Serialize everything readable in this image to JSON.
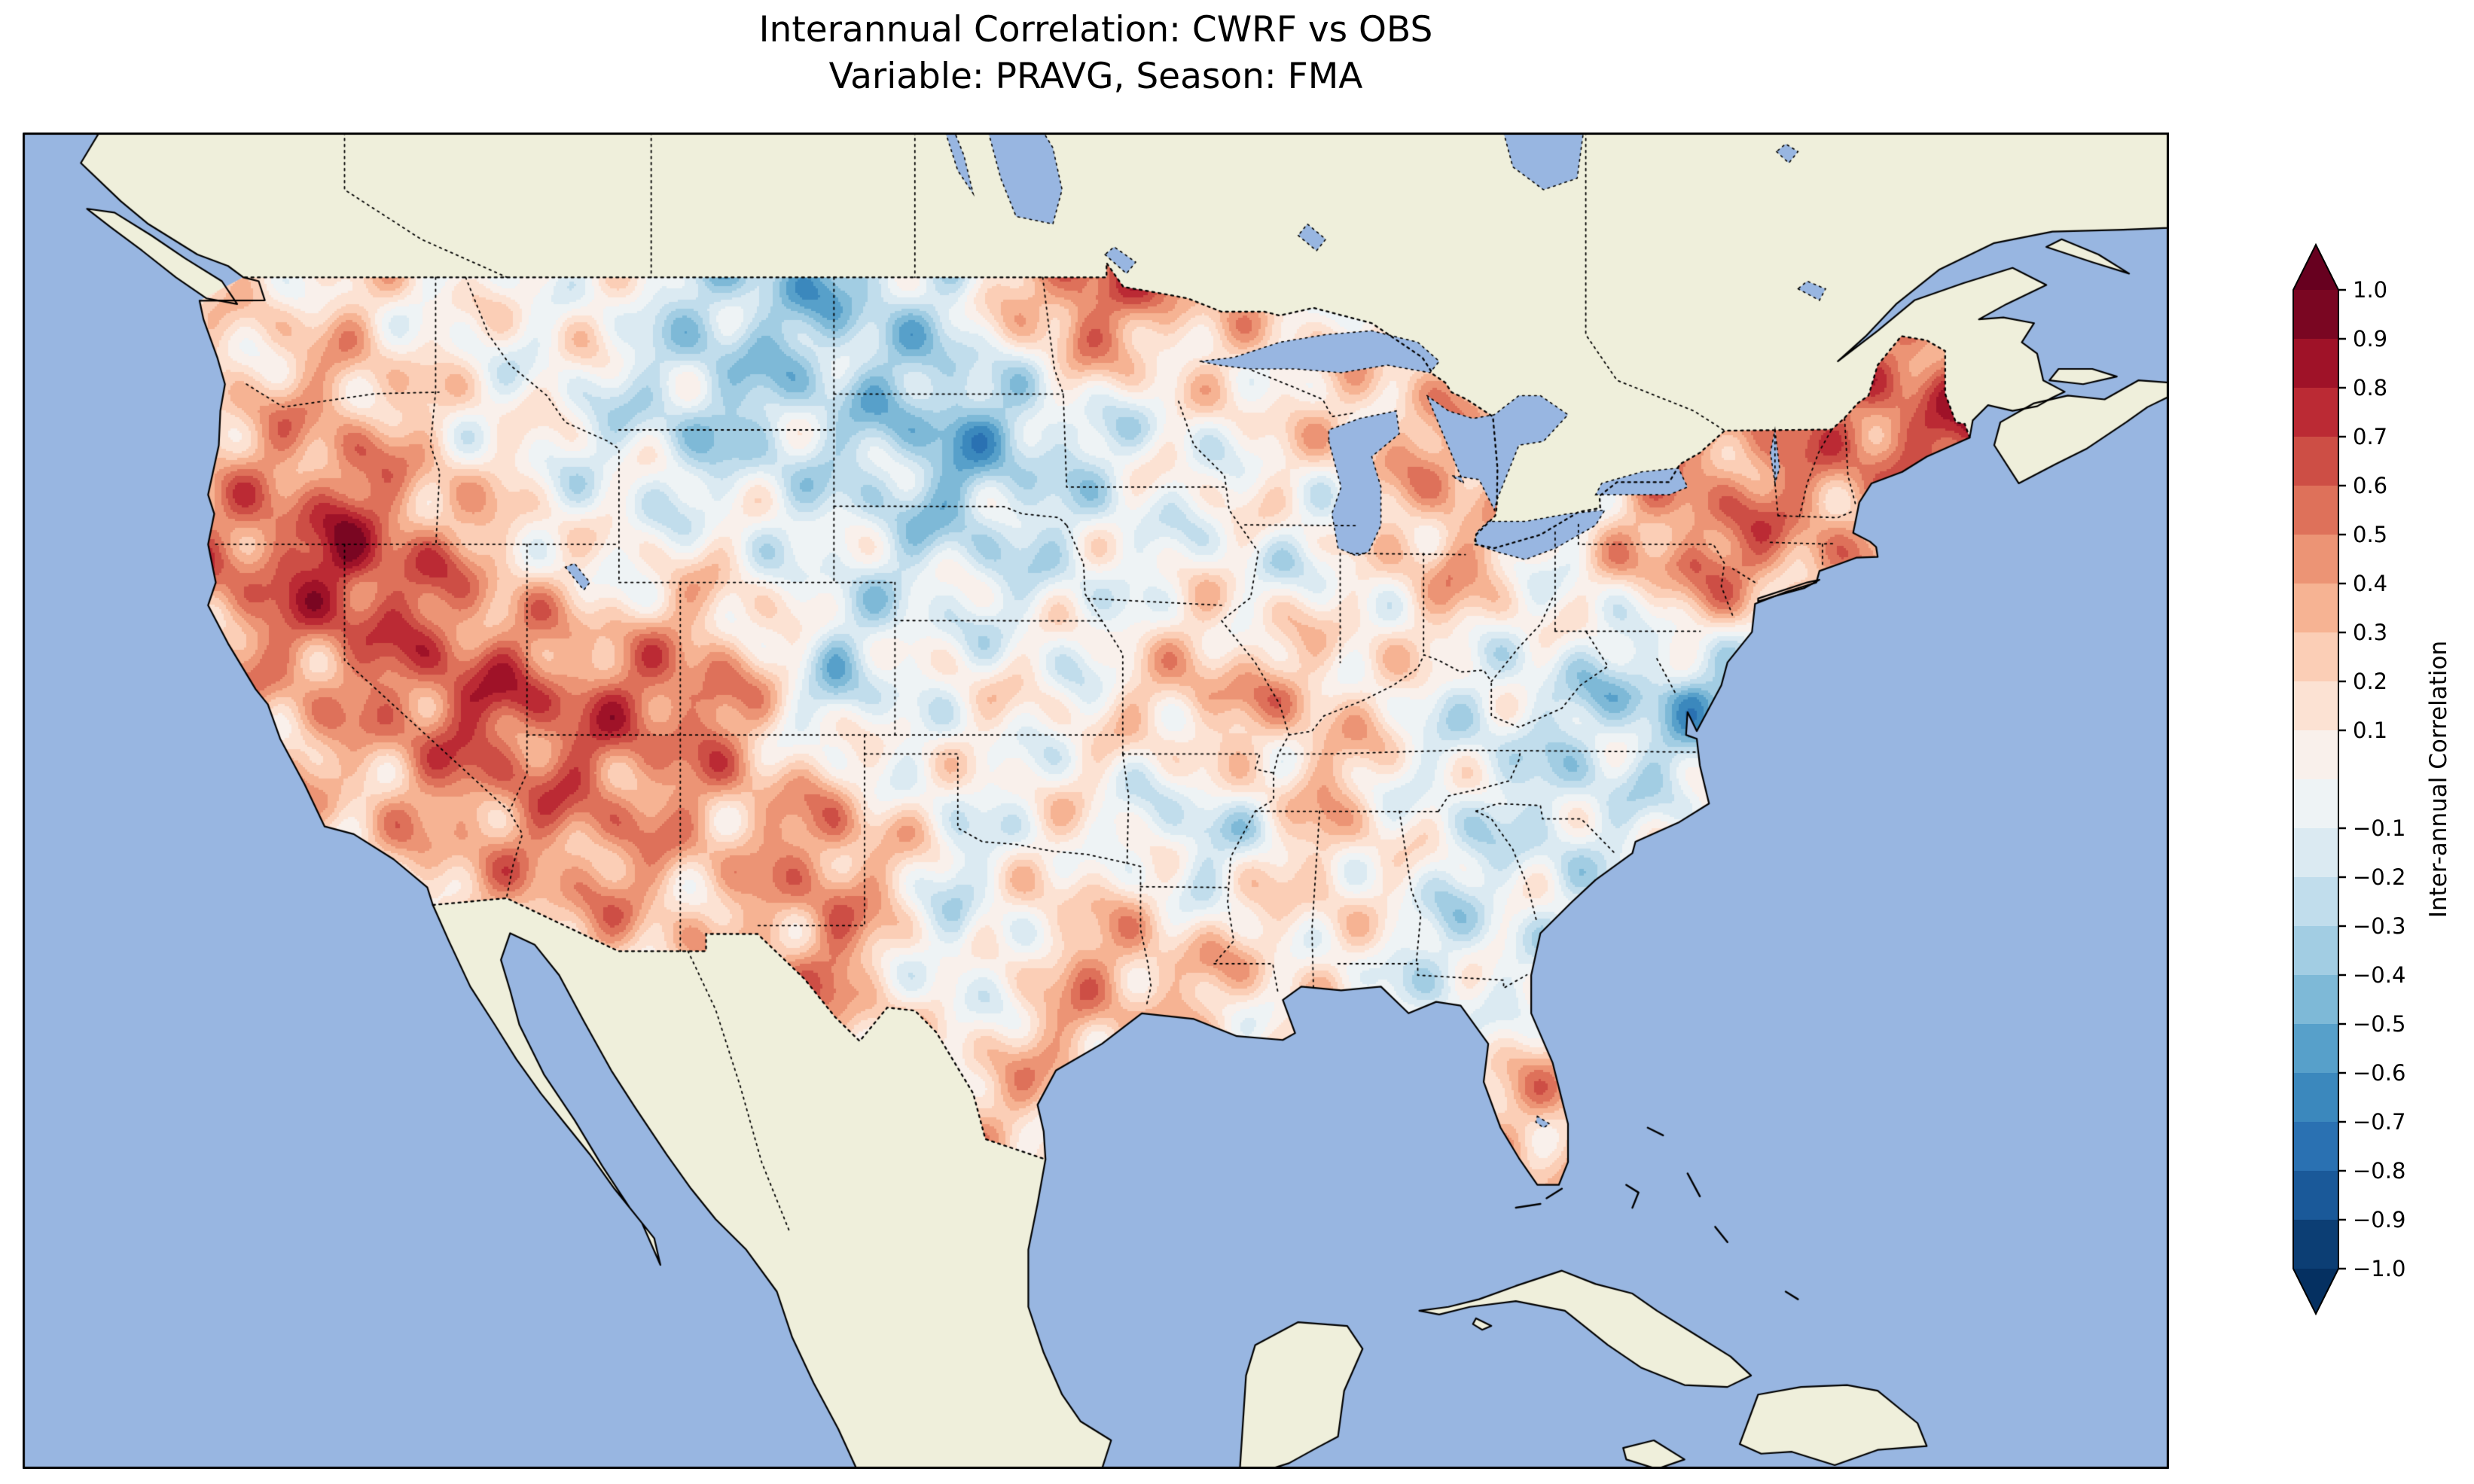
{
  "title": {
    "line1": "Interannual Correlation: CWRF vs OBS",
    "line2": "Variable: PRAVG, Season: FMA"
  },
  "colorbar": {
    "label": "Inter-annual Correlation",
    "tick_labels": [
      "1.0",
      "0.9",
      "0.8",
      "0.7",
      "0.6",
      "0.5",
      "0.4",
      "0.3",
      "0.2",
      "0.1",
      "−0.1",
      "−0.2",
      "−0.3",
      "−0.4",
      "−0.5",
      "−0.6",
      "−0.7",
      "−0.8",
      "−0.9",
      "−1.0"
    ],
    "tick_values": [
      1.0,
      0.9,
      0.8,
      0.7,
      0.6,
      0.5,
      0.4,
      0.3,
      0.2,
      0.1,
      -0.1,
      -0.2,
      -0.3,
      -0.4,
      -0.5,
      -0.6,
      -0.7,
      -0.8,
      -0.9,
      -1.0
    ],
    "min": -1.0,
    "max": 1.0,
    "level_step": 0.1,
    "colormap_name": "RdBu_r",
    "colormap_anchors": [
      "#053061",
      "#2166ac",
      "#4393c3",
      "#92c5de",
      "#d1e5f0",
      "#f7f7f7",
      "#fddbc7",
      "#f4a582",
      "#d6604d",
      "#b2182b",
      "#67001f"
    ],
    "over_color": "#67001f",
    "under_color": "#053061"
  },
  "map_style": {
    "ocean_color": "#98b6e1",
    "land_color": "#efefdb",
    "coastline_color": "#000000",
    "boundary_style": "dotted",
    "frame_color": "#000000"
  },
  "chart_data": {
    "type": "heatmap",
    "title": "Interannual Correlation: CWRF vs OBS",
    "subtitle": "Variable: PRAVG, Season: FMA",
    "variable": "PRAVG",
    "season": "FMA",
    "series_compared": [
      "CWRF",
      "OBS"
    ],
    "colorbar_label": "Inter-annual Correlation",
    "value_range": [
      -1,
      1
    ],
    "region": "Continental United States",
    "lon": [
      -124,
      -120,
      -116,
      -112,
      -108,
      -104,
      -100,
      -96,
      -92,
      -88,
      -84,
      -80,
      -76,
      -72,
      -68
    ],
    "lat": [
      48.5,
      45,
      41.5,
      38,
      34.5,
      31,
      27.5,
      24
    ],
    "values": [
      [
        0.1,
        0.2,
        0.0,
        0.1,
        -0.3,
        -0.4,
        -0.1,
        0.7,
        0.3,
        0.1,
        0.0,
        0.1,
        0.2,
        0.3,
        0.5
      ],
      [
        0.3,
        0.4,
        0.1,
        -0.1,
        -0.3,
        -0.2,
        -0.5,
        -0.2,
        0.0,
        0.2,
        0.4,
        0.1,
        0.4,
        0.5,
        0.7
      ],
      [
        0.5,
        0.85,
        0.4,
        0.0,
        0.1,
        -0.1,
        -0.2,
        -0.1,
        0.0,
        -0.1,
        0.4,
        0.0,
        0.6,
        0.4,
        0.2
      ],
      [
        0.3,
        0.4,
        0.7,
        0.6,
        0.6,
        -0.3,
        0.1,
        0.0,
        0.4,
        0.3,
        -0.1,
        -0.2,
        -0.5,
        0.0,
        0.0
      ],
      [
        0.2,
        0.2,
        0.4,
        0.5,
        0.3,
        0.5,
        -0.1,
        0.1,
        -0.3,
        0.3,
        -0.1,
        -0.2,
        0.1,
        0.0,
        0.0
      ],
      [
        0.0,
        0.1,
        0.2,
        0.3,
        0.2,
        0.5,
        -0.2,
        0.4,
        0.3,
        0.1,
        -0.2,
        0.0,
        0.0,
        0.0,
        0.0
      ],
      [
        0.0,
        0.0,
        0.0,
        0.0,
        0.1,
        0.2,
        0.3,
        0.3,
        0.1,
        0.0,
        0.2,
        0.4,
        0.0,
        0.0,
        0.0
      ],
      [
        0.0,
        0.0,
        0.0,
        0.0,
        0.0,
        0.0,
        0.0,
        0.0,
        0.0,
        0.0,
        0.0,
        0.2,
        0.0,
        0.0,
        0.0
      ]
    ]
  }
}
